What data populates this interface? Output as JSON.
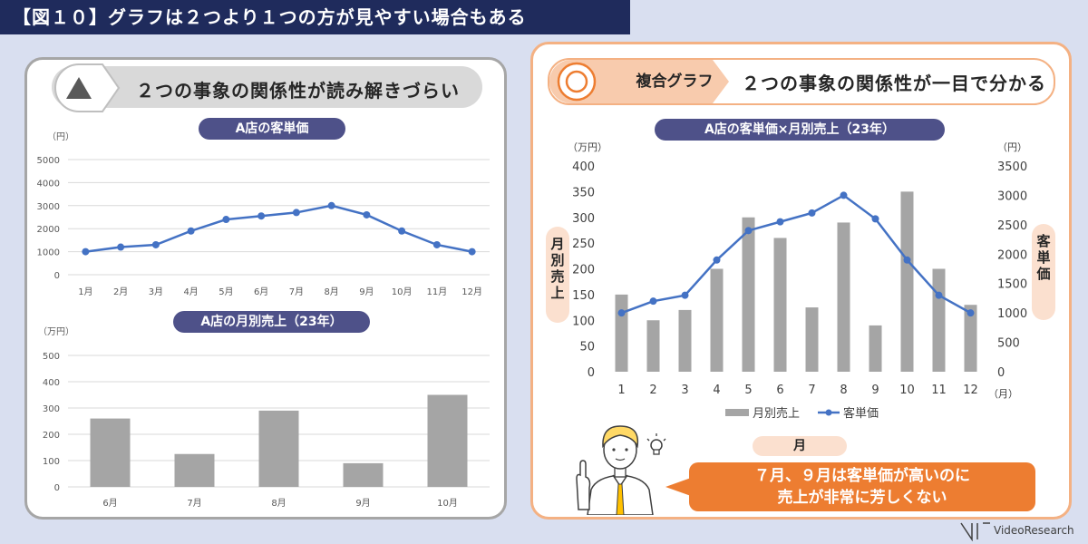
{
  "page_title": "【図１０】グラフは２つより１つの方が見やすい場合もある",
  "left_panel": {
    "header": "２つの事象の関係性が読み解きづらい",
    "icon": "triangle-icon"
  },
  "right_panel": {
    "tag": "複合グラフ",
    "header": "２つの事象の関係性が一目で分かる",
    "icon": "double-circle-icon"
  },
  "side_label_left": [
    "月",
    "別",
    "売",
    "上"
  ],
  "side_label_right": [
    "客",
    "単",
    "価"
  ],
  "month_label": "月",
  "callout": {
    "line1": "７月、９月は客単価が高いのに",
    "line2": "売上が非常に芳しくない"
  },
  "logo": "VideoResearch",
  "colors": {
    "line": "#4472c4",
    "bar": "#a5a5a5",
    "accent": "#ed7d31",
    "navy": "#1f2b5c"
  },
  "chart_data": [
    {
      "type": "line",
      "title": "A店の客単価",
      "unit": "（円）",
      "categories": [
        "1月",
        "2月",
        "3月",
        "4月",
        "5月",
        "6月",
        "7月",
        "8月",
        "9月",
        "10月",
        "11月",
        "12月"
      ],
      "values": [
        1000,
        1200,
        1300,
        1900,
        2400,
        2550,
        2700,
        3000,
        2600,
        1900,
        1300,
        1000
      ],
      "ylim": [
        0,
        5000
      ],
      "yticks": [
        0,
        1000,
        2000,
        3000,
        4000,
        5000
      ]
    },
    {
      "type": "bar",
      "title": "A店の月別売上（23年）",
      "unit": "（万円）",
      "categories": [
        "6月",
        "7月",
        "8月",
        "9月",
        "10月"
      ],
      "values": [
        260,
        125,
        290,
        90,
        350
      ],
      "ylim": [
        0,
        500
      ],
      "yticks": [
        0,
        100,
        200,
        300,
        400,
        500
      ]
    },
    {
      "type": "bar+line",
      "title": "A店の客単価×月別売上（23年）",
      "categories": [
        "1",
        "2",
        "3",
        "4",
        "5",
        "6",
        "7",
        "8",
        "9",
        "10",
        "11",
        "12"
      ],
      "x_unit": "（月）",
      "series": [
        {
          "name": "月別売上",
          "type": "bar",
          "axis": "left",
          "values": [
            150,
            100,
            120,
            200,
            300,
            260,
            125,
            290,
            90,
            350,
            200,
            130
          ]
        },
        {
          "name": "客単価",
          "type": "line",
          "axis": "right",
          "values": [
            1000,
            1200,
            1300,
            1900,
            2400,
            2550,
            2700,
            3000,
            2600,
            1900,
            1300,
            1000
          ]
        }
      ],
      "y_left": {
        "unit": "（万円）",
        "ylim": [
          0,
          400
        ],
        "yticks": [
          0,
          50,
          100,
          150,
          200,
          250,
          300,
          350,
          400
        ]
      },
      "y_right": {
        "unit": "（円）",
        "ylim": [
          0,
          3500
        ],
        "yticks": [
          0,
          500,
          1000,
          1500,
          2000,
          2500,
          3000,
          3500
        ]
      },
      "legend": "bottom"
    }
  ]
}
